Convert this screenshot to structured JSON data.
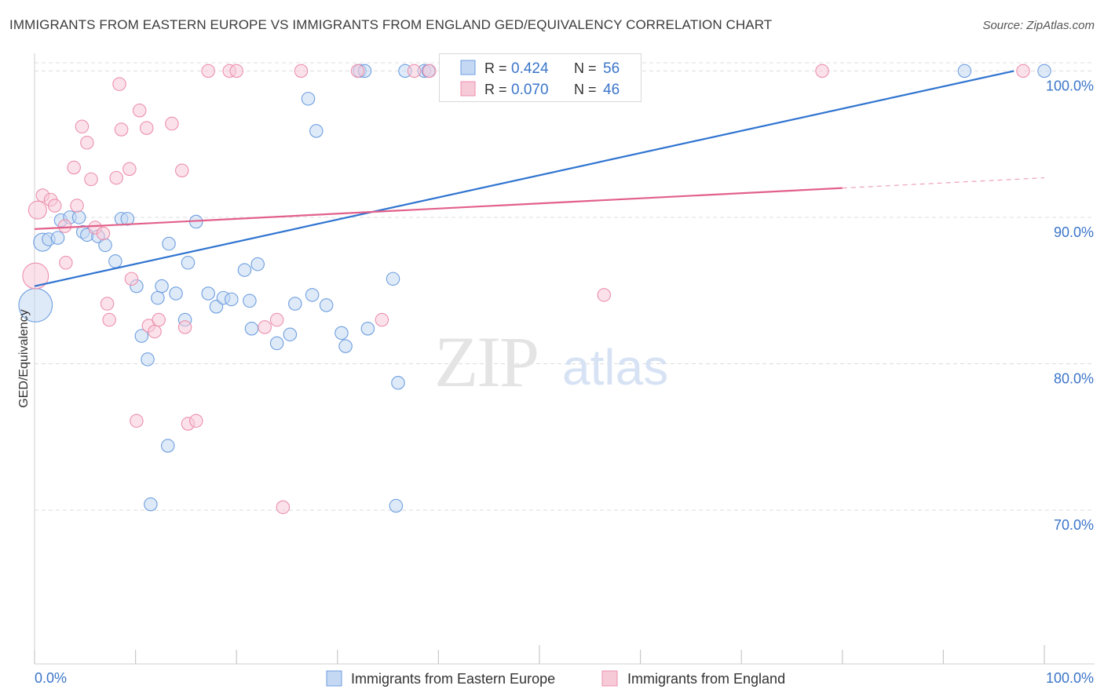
{
  "title": "IMMIGRANTS FROM EASTERN EUROPE VS IMMIGRANTS FROM ENGLAND GED/EQUIVALENCY CORRELATION CHART",
  "source": "Source: ZipAtlas.com",
  "watermark": {
    "zip": "ZIP",
    "atlas": "atlas"
  },
  "legend_box": {
    "rows": [
      {
        "r_label": "R =",
        "r_value": "0.424",
        "n_label": "N =",
        "n_value": "56"
      },
      {
        "r_label": "R =",
        "r_value": "0.070",
        "n_label": "N =",
        "n_value": "46"
      }
    ]
  },
  "colors": {
    "blue": "#6d9ee0",
    "blue_fill": "#c5d8f3",
    "blue_line": "#2f74d0",
    "pink": "#ec8fac",
    "pink_fill": "#f7cad8",
    "pink_line": "#e2608a",
    "value_text": "#3b75c9",
    "grid": "#dcdcdc"
  },
  "chart_data": {
    "type": "scatter",
    "xlabel": "",
    "ylabel": "GED/Equivalency",
    "xlim": [
      0,
      100
    ],
    "ylim": [
      59.5,
      101.2
    ],
    "x_tick_labels": [
      "0.0%",
      "100.0%"
    ],
    "y_ticks": [
      70,
      80,
      90,
      100
    ],
    "y_tick_labels": [
      "70.0%",
      "80.0%",
      "90.0%",
      "100.0%"
    ],
    "grid": true,
    "legend_position": "bottom",
    "series": [
      {
        "name": "Immigrants from Eastern Europe",
        "color": "#6d9ee0",
        "trend": {
          "x": [
            0,
            97
          ],
          "y": [
            85.3,
            100
          ]
        },
        "points": [
          [
            0.1,
            84.0,
            26
          ],
          [
            0.8,
            88.3,
            14
          ],
          [
            1.4,
            88.5,
            10
          ],
          [
            2.3,
            88.6,
            10
          ],
          [
            2.6,
            89.8,
            10
          ],
          [
            3.5,
            90.0,
            10
          ],
          [
            4.4,
            90.0,
            10
          ],
          [
            4.8,
            89.0,
            10
          ],
          [
            5.2,
            88.8,
            10
          ],
          [
            6.3,
            88.7,
            10
          ],
          [
            7.0,
            88.1,
            10
          ],
          [
            8.0,
            87.0,
            10
          ],
          [
            8.6,
            89.9,
            10
          ],
          [
            9.2,
            89.9,
            10
          ],
          [
            10.1,
            85.3,
            10
          ],
          [
            10.6,
            81.9,
            10
          ],
          [
            11.2,
            80.3,
            10
          ],
          [
            12.2,
            84.5,
            10
          ],
          [
            12.6,
            85.3,
            10
          ],
          [
            13.3,
            88.2,
            10
          ],
          [
            14.0,
            84.8,
            10
          ],
          [
            14.9,
            83.0,
            10
          ],
          [
            15.2,
            86.9,
            10
          ],
          [
            16.0,
            89.7,
            10
          ],
          [
            17.2,
            84.8,
            10
          ],
          [
            18.0,
            83.9,
            10
          ],
          [
            18.7,
            84.5,
            10
          ],
          [
            19.5,
            84.4,
            10
          ],
          [
            20.8,
            86.4,
            10
          ],
          [
            21.3,
            84.3,
            10
          ],
          [
            21.5,
            82.4,
            10
          ],
          [
            22.1,
            86.8,
            10
          ],
          [
            24.0,
            81.4,
            10
          ],
          [
            25.3,
            82.0,
            10
          ],
          [
            25.8,
            84.1,
            10
          ],
          [
            27.1,
            98.1,
            10
          ],
          [
            27.5,
            84.7,
            10
          ],
          [
            27.9,
            95.9,
            10
          ],
          [
            28.9,
            84.0,
            10
          ],
          [
            30.4,
            82.1,
            10
          ],
          [
            30.8,
            81.2,
            10
          ],
          [
            32.2,
            100.0,
            10
          ],
          [
            33.0,
            82.4,
            10
          ],
          [
            35.5,
            85.8,
            10
          ],
          [
            36.0,
            78.7,
            10
          ],
          [
            35.8,
            70.3,
            10
          ],
          [
            38.6,
            100.0,
            10
          ],
          [
            39.0,
            100.0,
            10
          ],
          [
            32.7,
            100.0,
            10
          ],
          [
            36.7,
            100.0,
            10
          ],
          [
            42.0,
            100.0,
            10
          ],
          [
            43.9,
            100.0,
            10
          ],
          [
            13.2,
            74.4,
            10
          ],
          [
            11.5,
            70.4,
            10
          ],
          [
            92.1,
            100.0,
            10
          ],
          [
            100.0,
            100.0,
            10
          ]
        ]
      },
      {
        "name": "Immigrants from England",
        "color": "#ec8fac",
        "trend": {
          "x": [
            0,
            80
          ],
          "y": [
            89.2,
            92.0
          ],
          "x_dashed": [
            80,
            100
          ],
          "y_dashed": [
            92.0,
            92.7
          ]
        },
        "points": [
          [
            0.1,
            86.0,
            20
          ],
          [
            0.3,
            90.5,
            14
          ],
          [
            0.8,
            91.5,
            10
          ],
          [
            1.6,
            91.2,
            10
          ],
          [
            2.0,
            90.8,
            10
          ],
          [
            3.0,
            89.4,
            10
          ],
          [
            3.1,
            86.9,
            10
          ],
          [
            3.9,
            93.4,
            10
          ],
          [
            4.2,
            90.8,
            10
          ],
          [
            4.7,
            96.2,
            10
          ],
          [
            5.2,
            95.1,
            10
          ],
          [
            5.6,
            92.6,
            10
          ],
          [
            6.0,
            89.3,
            10
          ],
          [
            6.8,
            88.9,
            10
          ],
          [
            7.2,
            84.1,
            10
          ],
          [
            7.4,
            83.0,
            10
          ],
          [
            8.1,
            92.7,
            10
          ],
          [
            8.4,
            99.1,
            10
          ],
          [
            8.6,
            96.0,
            10
          ],
          [
            9.4,
            93.3,
            10
          ],
          [
            9.6,
            85.8,
            10
          ],
          [
            10.1,
            76.1,
            10
          ],
          [
            10.4,
            97.3,
            10
          ],
          [
            11.1,
            96.1,
            10
          ],
          [
            11.3,
            82.6,
            10
          ],
          [
            11.9,
            82.2,
            10
          ],
          [
            12.3,
            83.0,
            10
          ],
          [
            13.6,
            96.4,
            10
          ],
          [
            14.6,
            93.2,
            10
          ],
          [
            14.9,
            82.5,
            10
          ],
          [
            15.2,
            75.9,
            10
          ],
          [
            16.0,
            76.1,
            10
          ],
          [
            17.2,
            100.0,
            10
          ],
          [
            19.3,
            100.0,
            10
          ],
          [
            20.0,
            100.0,
            10
          ],
          [
            22.8,
            82.5,
            10
          ],
          [
            24.0,
            83.0,
            10
          ],
          [
            24.6,
            70.2,
            10
          ],
          [
            26.4,
            100.0,
            10
          ],
          [
            32.0,
            100.0,
            10
          ],
          [
            34.4,
            83.0,
            10
          ],
          [
            37.6,
            100.0,
            10
          ],
          [
            39.1,
            100.0,
            10
          ],
          [
            56.4,
            84.7,
            10
          ],
          [
            78.0,
            100.0,
            10
          ],
          [
            97.9,
            100.0,
            10
          ]
        ]
      }
    ]
  }
}
